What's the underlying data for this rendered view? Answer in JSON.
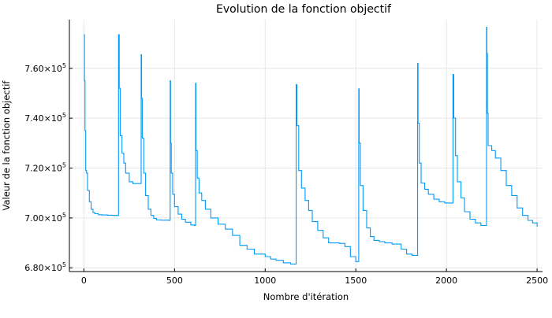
{
  "chart_data": {
    "type": "line",
    "title": "Evolution de la fonction objectif",
    "xlabel": "Nombre d'itération",
    "ylabel": "Valeur de la fonction objectif",
    "xlim": [
      -80,
      2530
    ],
    "ylim": [
      678500,
      779500
    ],
    "grid": true,
    "legend": "none",
    "line_color": "#009af9",
    "x_ticks": [
      {
        "value": 0,
        "label": "0"
      },
      {
        "value": 500,
        "label": "500"
      },
      {
        "value": 1000,
        "label": "1000"
      },
      {
        "value": 1500,
        "label": "1500"
      },
      {
        "value": 2000,
        "label": "2000"
      },
      {
        "value": 2500,
        "label": "2500"
      }
    ],
    "y_ticks": [
      {
        "value": 680000,
        "mantissa": "6.80×10",
        "exp": "5"
      },
      {
        "value": 700000,
        "mantissa": "7.00×10",
        "exp": "5"
      },
      {
        "value": 720000,
        "mantissa": "7.20×10",
        "exp": "5"
      },
      {
        "value": 740000,
        "mantissa": "7.40×10",
        "exp": "5"
      },
      {
        "value": 760000,
        "mantissa": "7.60×10",
        "exp": "5"
      }
    ],
    "series": [
      {
        "x": [
          0,
          3,
          6,
          10,
          15,
          20,
          30,
          40,
          50,
          60,
          80,
          100,
          130,
          160,
          190,
          191,
          195,
          200,
          210,
          220,
          230,
          250,
          270,
          300,
          315,
          316,
          318,
          322,
          330,
          340,
          355,
          370,
          385,
          400,
          430,
          470,
          475,
          476,
          478,
          482,
          490,
          500,
          520,
          540,
          560,
          590,
          610,
          615,
          616,
          618,
          625,
          635,
          650,
          670,
          700,
          740,
          780,
          820,
          860,
          900,
          940,
          980,
          1000,
          1030,
          1060,
          1100,
          1140,
          1170,
          1171,
          1175,
          1185,
          1200,
          1220,
          1240,
          1260,
          1290,
          1320,
          1350,
          1380,
          1410,
          1440,
          1470,
          1500,
          1515,
          1516,
          1518,
          1525,
          1540,
          1560,
          1580,
          1600,
          1630,
          1660,
          1700,
          1750,
          1780,
          1810,
          1840,
          1841,
          1843,
          1850,
          1860,
          1880,
          1900,
          1930,
          1960,
          1990,
          2010,
          2030,
          2035,
          2036,
          2040,
          2050,
          2060,
          2080,
          2100,
          2130,
          2160,
          2190,
          2220,
          2221,
          2223,
          2226,
          2230,
          2250,
          2270,
          2300,
          2330,
          2360,
          2390,
          2420,
          2450,
          2475,
          2500
        ],
        "y": [
          773500,
          755000,
          735000,
          719000,
          718000,
          711000,
          706500,
          703500,
          702200,
          701700,
          701300,
          701200,
          701100,
          701000,
          701000,
          773500,
          752000,
          733000,
          726000,
          722000,
          718000,
          714500,
          713800,
          713800,
          713800,
          765500,
          748000,
          732000,
          718000,
          709000,
          703500,
          701000,
          699800,
          699200,
          699100,
          699000,
          699000,
          755000,
          730000,
          718000,
          709500,
          704500,
          701500,
          699500,
          698300,
          697200,
          697000,
          697000,
          754000,
          727000,
          716000,
          710000,
          707000,
          703500,
          700000,
          697500,
          695500,
          693000,
          689000,
          687500,
          685500,
          685500,
          684500,
          683500,
          683000,
          682000,
          681500,
          681500,
          753500,
          737000,
          719000,
          712000,
          707000,
          703000,
          698500,
          695000,
          692000,
          690000,
          690000,
          689800,
          688500,
          684500,
          682500,
          682500,
          751800,
          730000,
          713000,
          703000,
          696000,
          692500,
          691000,
          690500,
          690000,
          689500,
          687500,
          685500,
          685000,
          685000,
          762000,
          738000,
          722000,
          714000,
          711500,
          709500,
          707500,
          706500,
          706000,
          706000,
          706000,
          706000,
          757500,
          740000,
          725000,
          714500,
          708000,
          702500,
          699500,
          698000,
          697000,
          697000,
          776500,
          766000,
          742000,
          729000,
          727000,
          724000,
          719000,
          713000,
          709000,
          704000,
          701000,
          699000,
          698000,
          696500
        ]
      }
    ]
  }
}
